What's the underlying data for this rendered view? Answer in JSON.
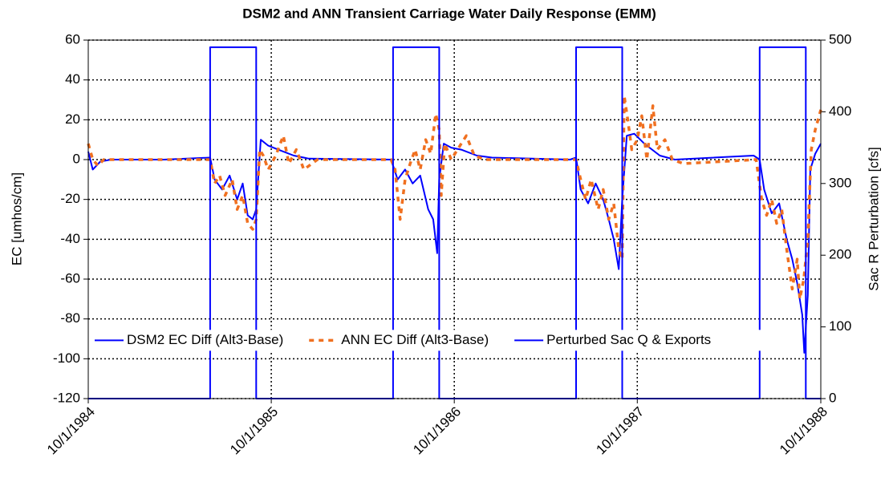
{
  "chart_data": {
    "type": "line",
    "title": "DSM2 and ANN Transient Carriage Water Daily Response (EMM)",
    "ylabel": "EC [umhos/cm]",
    "y2label": "Sac R Perturbation [cfs]",
    "xlim": [
      "10/1/1984",
      "10/1/1988"
    ],
    "xticks": [
      "10/1/1984",
      "10/1/1985",
      "10/1/1986",
      "10/1/1987",
      "10/1/1988"
    ],
    "ylim": [
      -120,
      60
    ],
    "yticks": [
      -120,
      -100,
      -80,
      -60,
      -40,
      -20,
      0,
      20,
      40,
      60
    ],
    "y2lim": [
      0,
      500
    ],
    "y2ticks": [
      0,
      100,
      200,
      300,
      400,
      500
    ],
    "grid": true,
    "legend": "lower left",
    "series": [
      {
        "name": "DSM2 EC Diff (Alt3-Base)",
        "color": "#0000ff",
        "style": "solid",
        "x": [
          "10/1/1984",
          "10/10/1984",
          "10/25/1984",
          "11/15/1984",
          "3/1/1985",
          "6/1/1985",
          "6/10/1985",
          "6/25/1985",
          "7/10/1985",
          "7/25/1985",
          "8/5/1985",
          "8/15/1985",
          "8/25/1985",
          "9/1/1985",
          "9/10/1985",
          "9/25/1985",
          "10/15/1985",
          "11/15/1985",
          "12/15/1985",
          "5/28/1986",
          "6/10/1986",
          "6/25/1986",
          "7/10/1986",
          "7/25/1986",
          "8/10/1986",
          "8/20/1986",
          "8/28/1986",
          "9/1/1986",
          "9/10/1986",
          "9/25/1986",
          "10/15/1986",
          "11/15/1986",
          "12/15/1986",
          "5/20/1987",
          "6/1/1987",
          "6/10/1987",
          "6/25/1987",
          "7/10/1987",
          "7/25/1987",
          "8/5/1987",
          "8/15/1987",
          "8/25/1987",
          "9/1/1987",
          "9/10/1987",
          "9/25/1987",
          "10/15/1987",
          "11/15/1987",
          "12/15/1987",
          "5/20/1988",
          "6/1/1988",
          "6/10/1988",
          "6/25/1988",
          "7/10/1988",
          "7/25/1988",
          "8/5/1988",
          "8/15/1988",
          "8/25/1988",
          "8/29/1988",
          "9/5/1988",
          "9/10/1988",
          "9/20/1988",
          "10/1/1988"
        ],
        "values": [
          4,
          -5,
          -1,
          0,
          0,
          1,
          -10,
          -15,
          -8,
          -20,
          -12,
          -28,
          -30,
          -25,
          10,
          7,
          5,
          2,
          0.5,
          0,
          -10,
          -5,
          -12,
          -8,
          -25,
          -30,
          -47,
          -10,
          8,
          6,
          5,
          2,
          1,
          0,
          1,
          -15,
          -22,
          -12,
          -20,
          -30,
          -40,
          -55,
          -20,
          12,
          13,
          8,
          2,
          0,
          2,
          0,
          -15,
          -27,
          -22,
          -40,
          -50,
          -62,
          -78,
          -97,
          -68,
          -5,
          3,
          8
        ]
      },
      {
        "name": "ANN EC Diff (Alt3-Base)",
        "color": "#f07020",
        "style": "dashed",
        "x": [
          "10/1/1984",
          "10/10/1984",
          "10/20/1984",
          "11/1/1984",
          "3/1/1985",
          "6/1/1985",
          "6/10/1985",
          "6/20/1985",
          "7/1/1985",
          "7/15/1985",
          "7/25/1985",
          "8/5/1985",
          "8/15/1985",
          "8/25/1985",
          "9/1/1985",
          "9/8/1985",
          "9/15/1985",
          "9/25/1985",
          "10/10/1985",
          "10/25/1985",
          "11/5/1985",
          "11/20/1985",
          "12/5/1985",
          "1/1/1986",
          "5/28/1986",
          "6/5/1986",
          "6/15/1986",
          "6/25/1986",
          "7/5/1986",
          "7/15/1986",
          "7/25/1986",
          "8/5/1986",
          "8/15/1986",
          "8/25/1986",
          "9/1/1986",
          "9/5/1986",
          "9/12/1986",
          "9/25/1986",
          "10/15/1986",
          "10/25/1986",
          "11/10/1986",
          "12/1/1986",
          "6/1/1987",
          "6/10/1987",
          "6/20/1987",
          "7/1/1987",
          "7/15/1987",
          "7/25/1987",
          "8/5/1987",
          "8/15/1987",
          "8/25/1987",
          "9/1/1987",
          "9/5/1987",
          "9/12/1987",
          "9/20/1987",
          "10/1/1987",
          "10/10/1987",
          "10/20/1987",
          "11/1/1987",
          "11/10/1987",
          "11/25/1987",
          "12/10/1987",
          "1/1/1988",
          "5/25/1988",
          "6/5/1988",
          "6/15/1988",
          "6/25/1988",
          "7/5/1988",
          "7/15/1988",
          "7/25/1988",
          "8/5/1988",
          "8/15/1988",
          "8/20/1988",
          "8/28/1988",
          "9/5/1988",
          "9/12/1988",
          "9/20/1988",
          "10/1/1988"
        ],
        "values": [
          8,
          0,
          -3,
          0,
          0,
          0,
          -12,
          -8,
          -18,
          -10,
          -25,
          -18,
          -32,
          -35,
          -30,
          5,
          2,
          -5,
          2,
          12,
          -2,
          5,
          -5,
          0,
          0,
          -5,
          -30,
          -10,
          -2,
          5,
          -5,
          10,
          3,
          23,
          15,
          -18,
          8,
          0,
          8,
          12,
          2,
          0,
          0,
          -10,
          -20,
          -10,
          -25,
          -15,
          -30,
          -22,
          -45,
          -50,
          32,
          20,
          5,
          10,
          22,
          0,
          27,
          5,
          10,
          0,
          -2,
          0,
          -20,
          -28,
          -20,
          -32,
          -25,
          -45,
          -65,
          -50,
          -70,
          -60,
          -40,
          5,
          15,
          25
        ]
      },
      {
        "name": "Perturbed Sac Q & Exports",
        "color": "#0000ff",
        "style": "solid",
        "axis": "y2",
        "x": [
          "10/1/1984",
          "6/1/1985",
          "6/1/1985",
          "9/1/1985",
          "9/1/1985",
          "6/1/1986",
          "6/1/1986",
          "9/1/1986",
          "9/1/1986",
          "6/1/1987",
          "6/1/1987",
          "9/1/1987",
          "9/1/1987",
          "6/1/1988",
          "6/1/1988",
          "9/1/1988",
          "9/1/1988",
          "10/1/1988"
        ],
        "values": [
          0,
          0,
          490,
          490,
          0,
          0,
          490,
          490,
          0,
          0,
          490,
          490,
          0,
          0,
          490,
          490,
          0,
          0
        ]
      }
    ]
  }
}
